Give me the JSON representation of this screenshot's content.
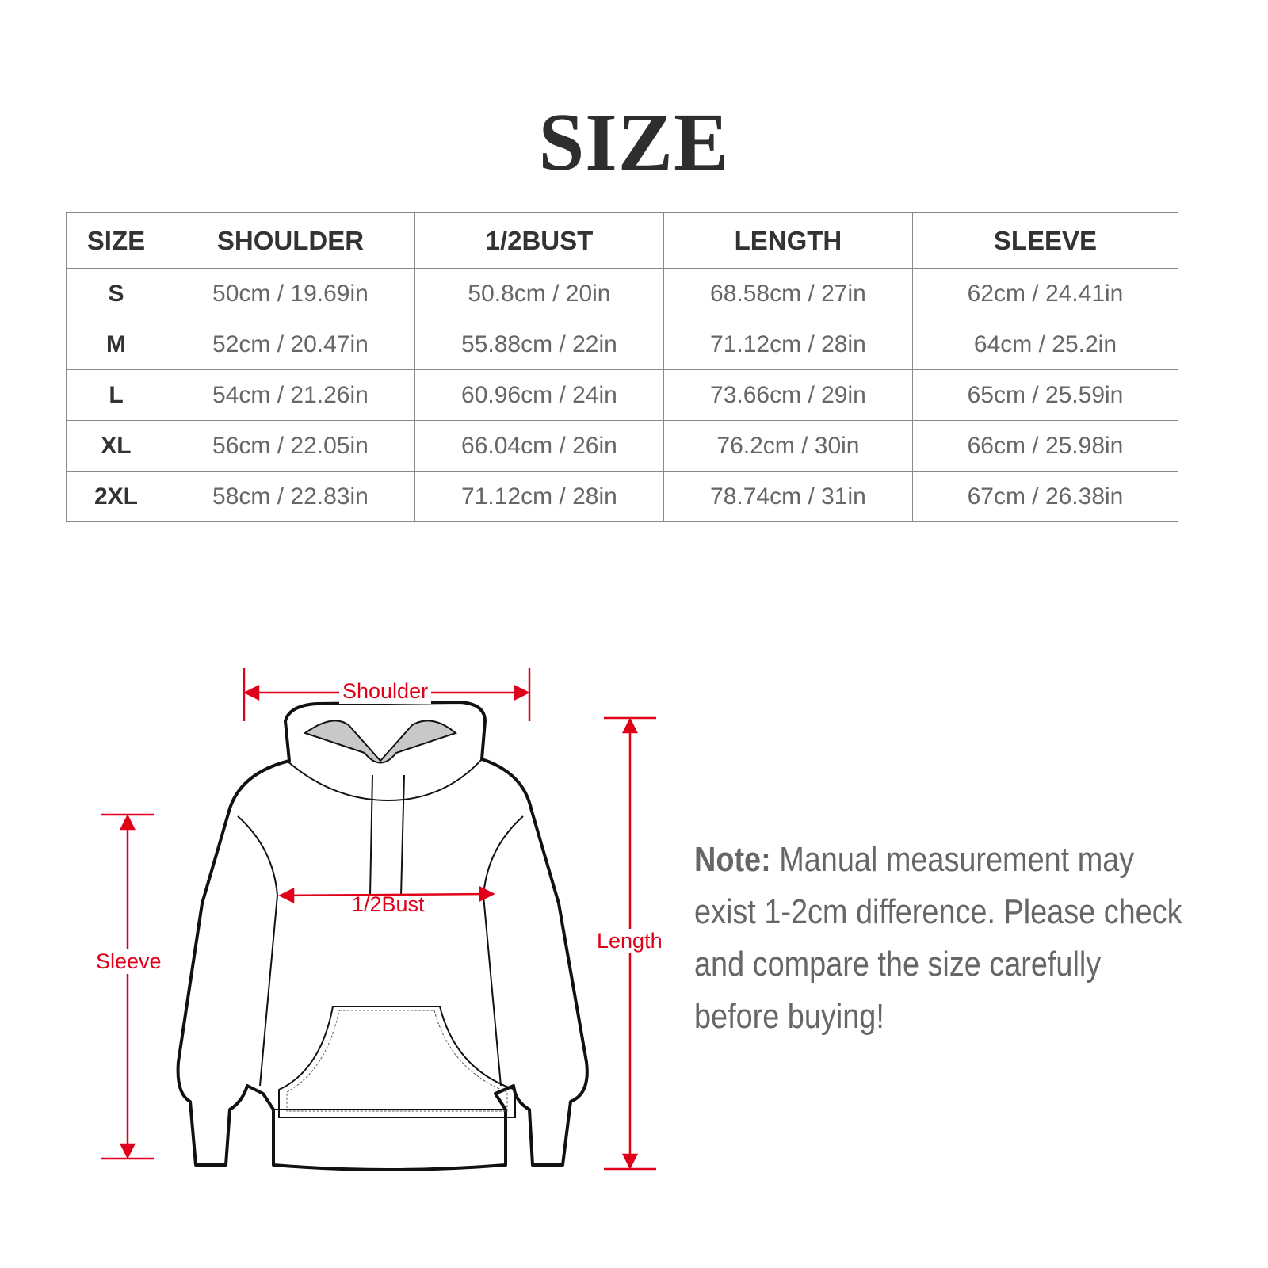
{
  "title": "SIZE",
  "table": {
    "headers": [
      "SIZE",
      "SHOULDER",
      "1/2BUST",
      "LENGTH",
      "SLEEVE"
    ],
    "rows": [
      [
        "S",
        "50cm / 19.69in",
        "50.8cm / 20in",
        "68.58cm / 27in",
        "62cm / 24.41in"
      ],
      [
        "M",
        "52cm / 20.47in",
        "55.88cm / 22in",
        "71.12cm / 28in",
        "64cm / 25.2in"
      ],
      [
        "L",
        "54cm / 21.26in",
        "60.96cm / 24in",
        "73.66cm / 29in",
        "65cm / 25.59in"
      ],
      [
        "XL",
        "56cm / 22.05in",
        "66.04cm / 26in",
        "76.2cm / 30in",
        "66cm / 25.98in"
      ],
      [
        "2XL",
        "58cm / 22.83in",
        "71.12cm / 28in",
        "78.74cm / 31in",
        "67cm / 26.38in"
      ]
    ]
  },
  "diagram": {
    "labels": {
      "shoulder": "Shoulder",
      "bust": "1/2Bust",
      "length": "Length",
      "sleeve": "Sleeve"
    },
    "accent_color": "#e0001a"
  },
  "note": {
    "label": "Note:",
    "text": " Manual measurement may exist 1-2cm difference. Please check and compare the size carefully before buying!"
  }
}
